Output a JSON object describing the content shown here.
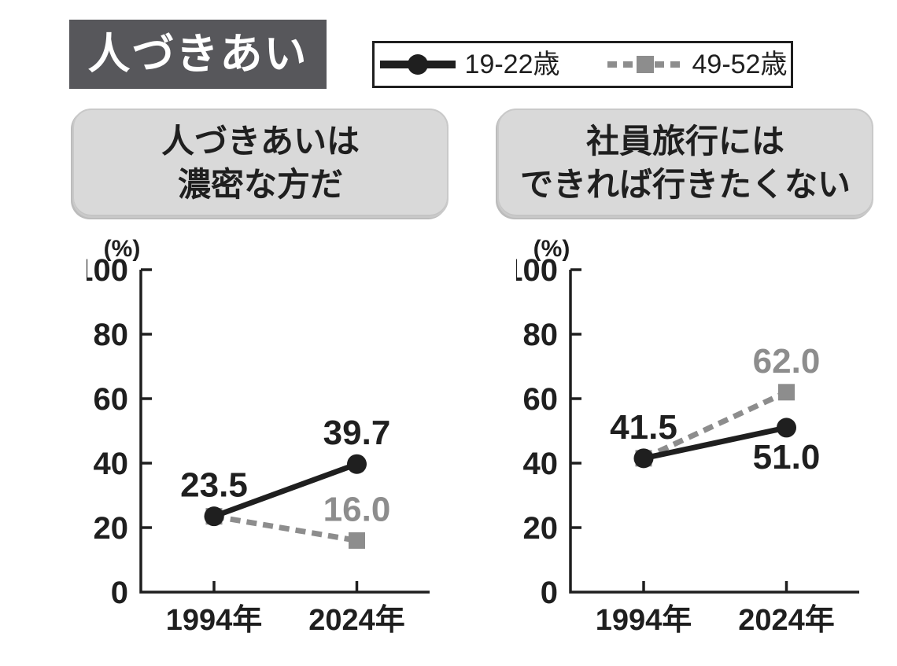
{
  "header": {
    "title": "人づきあい"
  },
  "colors": {
    "ink": "#1f1f1f",
    "gray": "#8d8d8d",
    "title_bg": "#57575b",
    "title_text": "#ffffff",
    "panel_bg": "#d9d9d9",
    "background": "#ffffff"
  },
  "legend": {
    "items": [
      {
        "label": "19-22歳",
        "color": "#1f1f1f",
        "style": "solid",
        "marker": "circle"
      },
      {
        "label": "49-52歳",
        "color": "#8d8d8d",
        "style": "dashed",
        "marker": "square"
      }
    ]
  },
  "chart_data": [
    {
      "type": "line",
      "title_lines": [
        "人づきあいは",
        "濃密な方だ"
      ],
      "x": [
        "1994年",
        "2024年"
      ],
      "ylabel": "(%)",
      "ylim": [
        0,
        100
      ],
      "yticks": [
        0,
        20,
        40,
        60,
        80,
        100
      ],
      "grid": false,
      "series": [
        {
          "name": "19-22歳",
          "color": "#1f1f1f",
          "style": "solid",
          "marker": "circle",
          "values": [
            23.5,
            39.7
          ],
          "point_labels": [
            "23.5",
            "39.7"
          ],
          "label_sides": [
            "above",
            "above"
          ]
        },
        {
          "name": "49-52歳",
          "color": "#8d8d8d",
          "style": "dashed",
          "marker": "square",
          "values": [
            23.5,
            16.0
          ],
          "point_labels": [
            null,
            "16.0"
          ],
          "label_sides": [
            null,
            "above"
          ]
        }
      ]
    },
    {
      "type": "line",
      "title_lines": [
        "社員旅行には",
        "できれば行きたくない"
      ],
      "x": [
        "1994年",
        "2024年"
      ],
      "ylabel": "(%)",
      "ylim": [
        0,
        100
      ],
      "yticks": [
        0,
        20,
        40,
        60,
        80,
        100
      ],
      "grid": false,
      "series": [
        {
          "name": "19-22歳",
          "color": "#1f1f1f",
          "style": "solid",
          "marker": "circle",
          "values": [
            41.5,
            51.0
          ],
          "point_labels": [
            "41.5",
            "51.0"
          ],
          "label_sides": [
            "above",
            "below"
          ]
        },
        {
          "name": "49-52歳",
          "color": "#8d8d8d",
          "style": "dashed",
          "marker": "square",
          "values": [
            41.5,
            62.0
          ],
          "point_labels": [
            null,
            "62.0"
          ],
          "label_sides": [
            null,
            "above"
          ]
        }
      ]
    }
  ]
}
